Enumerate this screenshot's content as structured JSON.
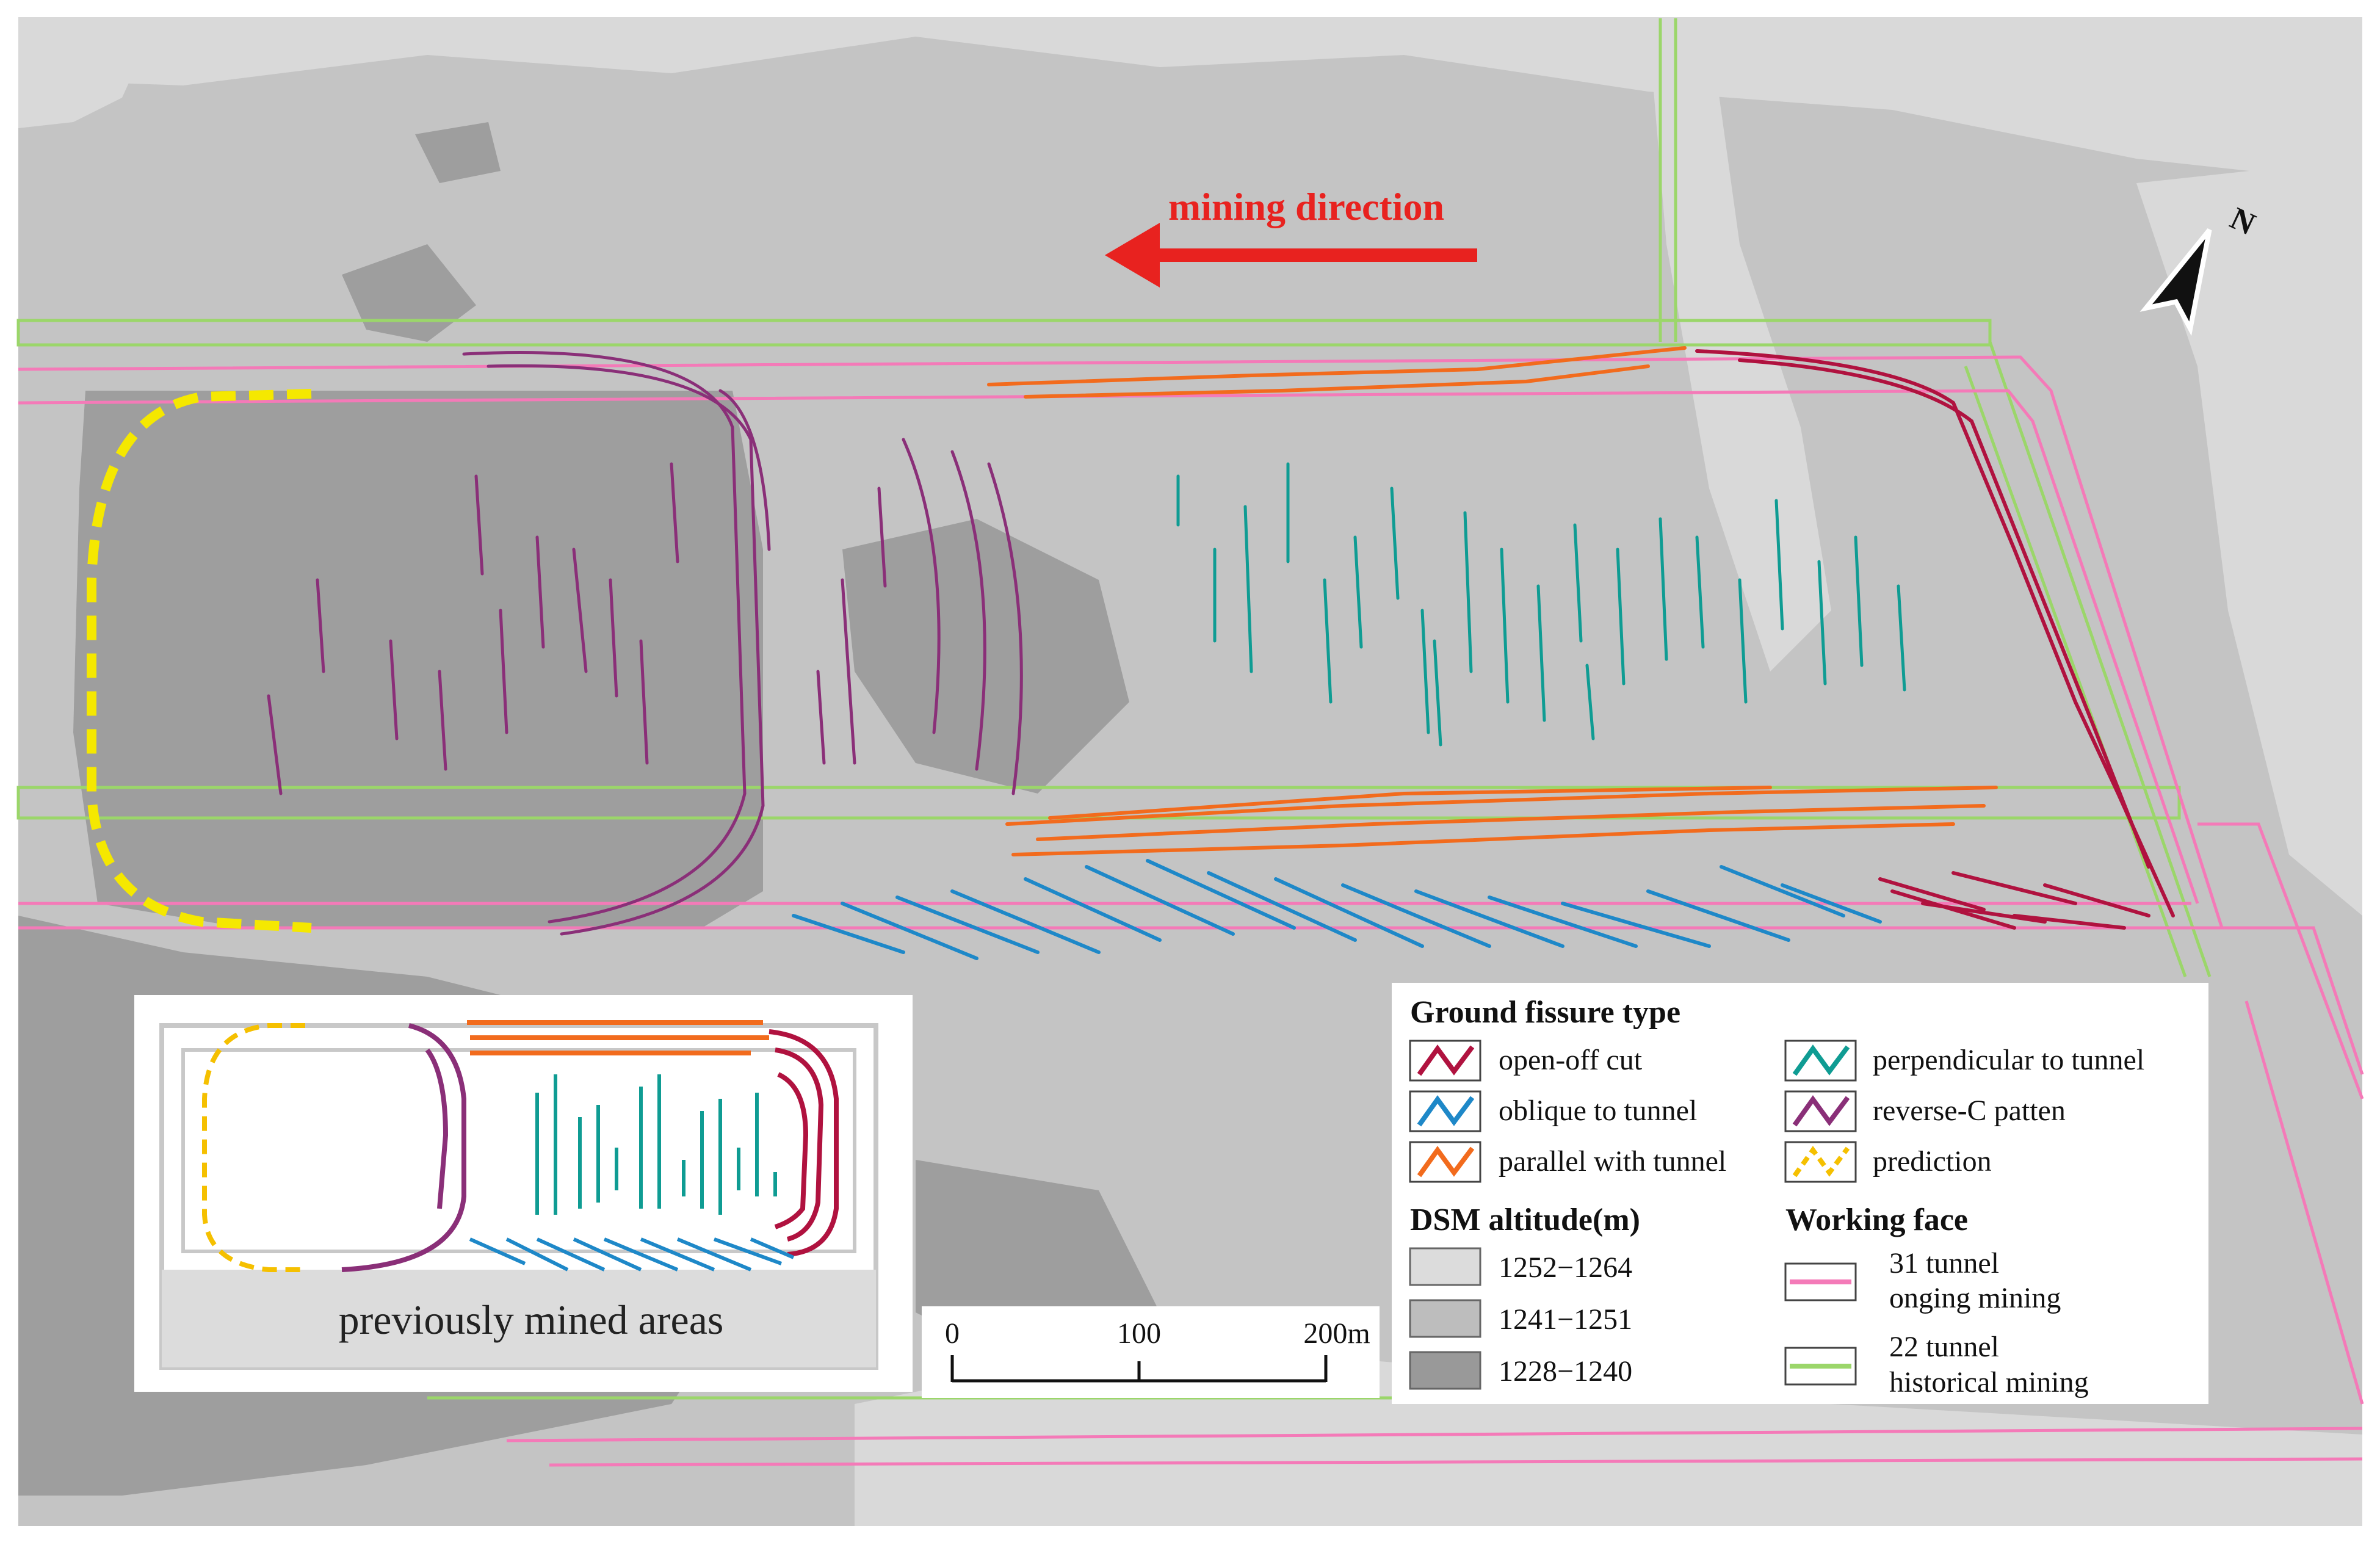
{
  "annotations": {
    "mining_direction": "mining direction",
    "north": "N"
  },
  "inset": {
    "label": "previously mined areas"
  },
  "scale_bar": {
    "ticks": [
      "0",
      "100",
      "200m"
    ]
  },
  "legend": {
    "fissure_title": "Ground fissure type",
    "fissure_items": [
      {
        "label": "open-off cut",
        "color": "#b0123f"
      },
      {
        "label": "oblique  to tunnel",
        "color": "#1e88c8"
      },
      {
        "label": "parallel with tunnel",
        "color": "#f26b1d"
      },
      {
        "label": "perpendicular to tunnel",
        "color": "#0f9c93"
      },
      {
        "label": "reverse-C patten",
        "color": "#8a2f78"
      },
      {
        "label": "prediction",
        "color": "#f5c000"
      }
    ],
    "dsm_title": "DSM altitude(m)",
    "dsm_items": [
      {
        "label": "1252−1264",
        "color": "#dcdcdc"
      },
      {
        "label": "1241−1251",
        "color": "#bdbdbd"
      },
      {
        "label": "1228−1240",
        "color": "#999999"
      }
    ],
    "working_face_title": "Working face",
    "working_face_items": [
      {
        "line1": "31 tunnel",
        "line2": "onging mining",
        "color": "#f47ab8"
      },
      {
        "line1": "22 tunnel",
        "line2": "historical  mining",
        "color": "#9bd66a"
      }
    ]
  },
  "colors": {
    "background_mid": "#bdbdbd",
    "background_light": "#d6d6d6",
    "background_dark": "#9c9c9c",
    "arrow": "#e8221f",
    "prediction": "#f5e800"
  }
}
